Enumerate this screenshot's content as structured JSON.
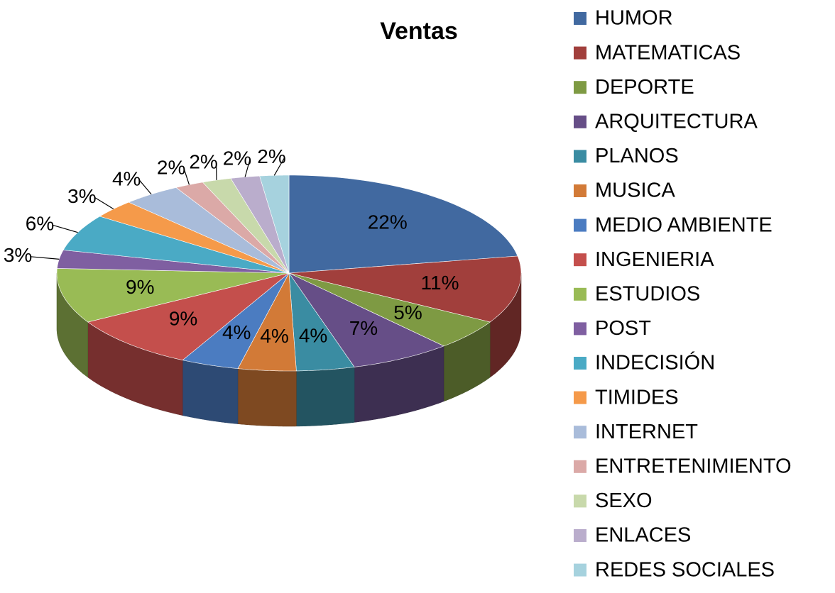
{
  "chart_data": {
    "type": "pie3d",
    "title": "Ventas",
    "categories": [
      "HUMOR",
      "MATEMATICAS",
      "DEPORTE",
      "ARQUITECTURA",
      "PLANOS",
      "MUSICA",
      "MEDIO AMBIENTE",
      "INGENIERIA",
      "ESTUDIOS",
      "POST",
      "INDECISIÓN",
      "TIMIDES",
      "INTERNET",
      "ENTRETENIMIENTO",
      "SEXO",
      "ENLACES",
      "REDES SOCIALES"
    ],
    "values": [
      22,
      11,
      5,
      7,
      4,
      4,
      4,
      9,
      9,
      3,
      6,
      3,
      4,
      2,
      2,
      2,
      2
    ],
    "value_labels": [
      "22%",
      "11%",
      "5%",
      "7%",
      "4%",
      "4%",
      "4%",
      "9%",
      "9%",
      "3%",
      "6%",
      "3%",
      "4%",
      "2%",
      "2%",
      "2%",
      "2%"
    ],
    "colors": [
      "#4169a0",
      "#a13f3c",
      "#7e9a43",
      "#664e87",
      "#3a8ca2",
      "#d27a37",
      "#4b7cc1",
      "#c44f4c",
      "#99bb55",
      "#7f5fa1",
      "#4aaac5",
      "#f59a4a",
      "#a9bcda",
      "#dba9a7",
      "#c8d9ab",
      "#baadcc",
      "#a6d2de"
    ],
    "legend": "right"
  }
}
